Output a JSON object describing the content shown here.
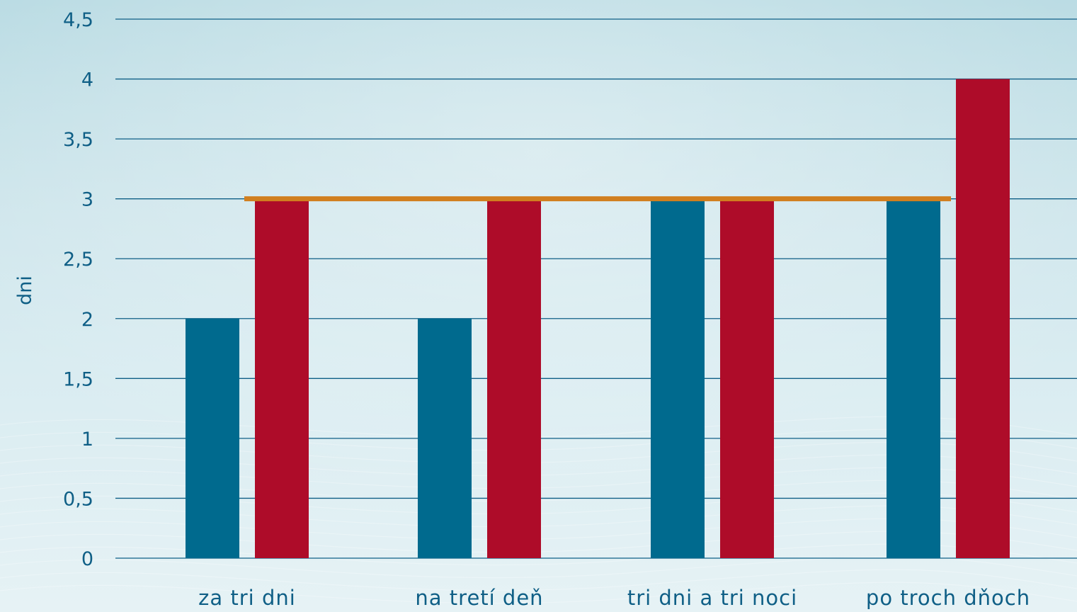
{
  "chart_data": {
    "type": "bar",
    "categories": [
      "za tri dni",
      "na tretí deň",
      "tri dni a tri noci",
      "po troch dňoch"
    ],
    "series": [
      {
        "values": [
          2,
          2,
          3,
          3
        ],
        "color": "#006a8e"
      },
      {
        "values": [
          3,
          3,
          3,
          4
        ],
        "color": "#ae0c29"
      }
    ],
    "reference_line": {
      "value": 3,
      "color": "#d17f1f"
    },
    "ylabel": "dni",
    "ylim": [
      0,
      4.5
    ],
    "yticks": [
      "0",
      "0,5",
      "1",
      "1,5",
      "2",
      "2,5",
      "3",
      "3,5",
      "4",
      "4,5"
    ],
    "grid": true,
    "legend": "none"
  }
}
